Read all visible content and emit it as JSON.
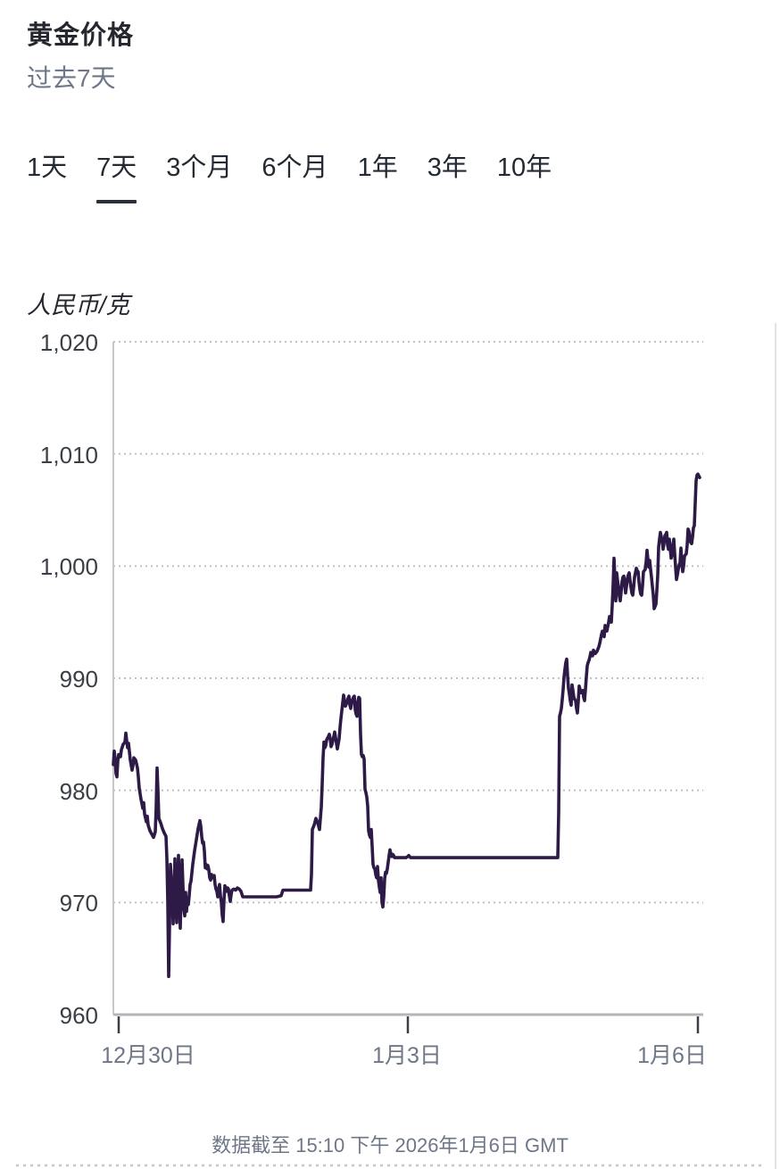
{
  "header": {
    "title": "黄金价格",
    "subtitle": "过去7天"
  },
  "tabs": {
    "items": [
      {
        "label": "1天",
        "selected": false
      },
      {
        "label": "7天",
        "selected": true
      },
      {
        "label": "3个月",
        "selected": false
      },
      {
        "label": "6个月",
        "selected": false
      },
      {
        "label": "1年",
        "selected": false
      },
      {
        "label": "3年",
        "selected": false
      },
      {
        "label": "10年",
        "selected": false
      }
    ]
  },
  "footer": {
    "data_as_of": "数据截至 15:10 下午 2026年1月6日 GMT"
  },
  "chart_data": {
    "type": "line",
    "title": "黄金价格",
    "subtitle": "过去7天",
    "ylabel": "人民币/克",
    "xlabel": "",
    "ylim": [
      960,
      1020
    ],
    "grid": "dotted-horizontal",
    "legend": "none",
    "line_color": "#2e1a47",
    "axis_color": "#b5b5b5",
    "grid_color": "#c0c0c0",
    "y_ticks": [
      {
        "label": "1,020",
        "value": 1020
      },
      {
        "label": "1,010",
        "value": 1010
      },
      {
        "label": "1,000",
        "value": 1000
      },
      {
        "label": "990",
        "value": 990
      },
      {
        "label": "980",
        "value": 980
      },
      {
        "label": "970",
        "value": 970
      },
      {
        "label": "960",
        "value": 960
      }
    ],
    "x_ticks": [
      {
        "label": "12月30日",
        "x": 133,
        "label_center_x": 166
      },
      {
        "label": "1月3日",
        "x": 457,
        "label_center_x": 456
      },
      {
        "label": "1月6日",
        "x": 782,
        "label_center_x": 753
      }
    ],
    "points": [
      [
        127,
        982.3
      ],
      [
        128,
        983.5
      ],
      [
        129,
        982.8
      ],
      [
        130,
        981.5
      ],
      [
        131,
        981.2
      ],
      [
        132,
        982.6
      ],
      [
        133,
        983.2
      ],
      [
        135,
        983.0
      ],
      [
        136,
        983.6
      ],
      [
        138,
        984.1
      ],
      [
        140,
        984.3
      ],
      [
        141,
        985.1
      ],
      [
        142,
        984.4
      ],
      [
        143,
        983.8
      ],
      [
        144,
        984.2
      ],
      [
        146,
        982.7
      ],
      [
        148,
        981.8
      ],
      [
        149,
        982.2
      ],
      [
        150,
        982.9
      ],
      [
        152,
        982.7
      ],
      [
        154,
        982.0
      ],
      [
        155,
        981.2
      ],
      [
        156,
        980.2
      ],
      [
        158,
        979.2
      ],
      [
        160,
        978.4
      ],
      [
        161,
        978.9
      ],
      [
        162,
        977.9
      ],
      [
        164,
        977.2
      ],
      [
        165,
        977.7
      ],
      [
        166,
        976.9
      ],
      [
        168,
        976.4
      ],
      [
        170,
        976.1
      ],
      [
        172,
        975.8
      ],
      [
        174,
        976.3
      ],
      [
        175,
        978.5
      ],
      [
        176,
        982.0
      ],
      [
        177,
        980.0
      ],
      [
        178,
        977.5
      ],
      [
        180,
        977.1
      ],
      [
        182,
        976.6
      ],
      [
        184,
        976.2
      ],
      [
        186,
        975.9
      ],
      [
        187,
        973.9
      ],
      [
        188,
        970.0
      ],
      [
        189,
        963.4
      ],
      [
        190,
        968.0
      ],
      [
        191,
        973.4
      ],
      [
        192,
        972.0
      ],
      [
        193,
        971.3
      ],
      [
        194,
        968.1
      ],
      [
        195,
        971.0
      ],
      [
        196,
        973.9
      ],
      [
        197,
        970.5
      ],
      [
        198,
        968.2
      ],
      [
        199,
        971.5
      ],
      [
        200,
        974.2
      ],
      [
        201,
        970.8
      ],
      [
        202,
        967.7
      ],
      [
        203,
        971.0
      ],
      [
        204,
        973.8
      ],
      [
        205,
        971.5
      ],
      [
        206,
        969.4
      ],
      [
        207,
        968.8
      ],
      [
        208,
        970.9
      ],
      [
        209,
        969.2
      ],
      [
        210,
        970.3
      ],
      [
        211,
        969.8
      ],
      [
        212,
        970.6
      ],
      [
        213,
        971.6
      ],
      [
        214,
        971.9
      ],
      [
        216,
        973.4
      ],
      [
        218,
        974.6
      ],
      [
        220,
        975.6
      ],
      [
        222,
        976.6
      ],
      [
        224,
        977.3
      ],
      [
        225,
        976.8
      ],
      [
        226,
        975.9
      ],
      [
        227,
        975.3
      ],
      [
        228,
        975.4
      ],
      [
        229,
        974.6
      ],
      [
        230,
        973.1
      ],
      [
        231,
        973.4
      ],
      [
        232,
        973.0
      ],
      [
        233,
        973.3
      ],
      [
        234,
        972.9
      ],
      [
        235,
        972.2
      ],
      [
        236,
        972.0
      ],
      [
        237,
        972.5
      ],
      [
        238,
        972.2
      ],
      [
        240,
        972.4
      ],
      [
        241,
        971.6
      ],
      [
        242,
        971.2
      ],
      [
        243,
        971.0
      ],
      [
        244,
        970.5
      ],
      [
        245,
        971.2
      ],
      [
        246,
        971.6
      ],
      [
        247,
        970.6
      ],
      [
        248,
        970.0
      ],
      [
        249,
        968.9
      ],
      [
        250,
        968.3
      ],
      [
        251,
        970.2
      ],
      [
        252,
        971.5
      ],
      [
        253,
        971.2
      ],
      [
        254,
        971.0
      ],
      [
        255,
        971.3
      ],
      [
        256,
        971.2
      ],
      [
        257,
        970.6
      ],
      [
        258,
        970.1
      ],
      [
        259,
        970.7
      ],
      [
        260,
        971.1
      ],
      [
        262,
        971.2
      ],
      [
        264,
        971.1
      ],
      [
        266,
        971.3
      ],
      [
        268,
        971.2
      ],
      [
        270,
        971.0
      ],
      [
        272,
        970.5
      ],
      [
        280,
        970.5
      ],
      [
        290,
        970.5
      ],
      [
        300,
        970.5
      ],
      [
        310,
        970.5
      ],
      [
        315,
        970.6
      ],
      [
        317,
        971.1
      ],
      [
        325,
        971.1
      ],
      [
        335,
        971.1
      ],
      [
        345,
        971.1
      ],
      [
        348,
        971.1
      ],
      [
        349,
        972.5
      ],
      [
        350,
        976.5
      ],
      [
        352,
        976.9
      ],
      [
        354,
        977.5
      ],
      [
        356,
        977.1
      ],
      [
        358,
        976.5
      ],
      [
        360,
        978.5
      ],
      [
        361,
        980.5
      ],
      [
        362,
        982.9
      ],
      [
        363,
        984.3
      ],
      [
        364,
        983.8
      ],
      [
        365,
        984.0
      ],
      [
        366,
        984.5
      ],
      [
        368,
        984.8
      ],
      [
        369,
        985.0
      ],
      [
        370,
        984.6
      ],
      [
        371,
        983.9
      ],
      [
        372,
        984.1
      ],
      [
        374,
        984.8
      ],
      [
        375,
        985.2
      ],
      [
        376,
        984.7
      ],
      [
        378,
        983.7
      ],
      [
        380,
        984.6
      ],
      [
        381,
        985.6
      ],
      [
        382,
        986.4
      ],
      [
        383,
        987.1
      ],
      [
        384,
        987.8
      ],
      [
        385,
        988.5
      ],
      [
        386,
        988.0
      ],
      [
        387,
        987.5
      ],
      [
        388,
        987.7
      ],
      [
        389,
        987.9
      ],
      [
        390,
        988.2
      ],
      [
        391,
        988.4
      ],
      [
        392,
        987.6
      ],
      [
        393,
        987.3
      ],
      [
        394,
        987.8
      ],
      [
        395,
        988.1
      ],
      [
        396,
        988.3
      ],
      [
        397,
        988.4
      ],
      [
        398,
        987.2
      ],
      [
        399,
        986.8
      ],
      [
        400,
        986.6
      ],
      [
        401,
        987.9
      ],
      [
        402,
        988.3
      ],
      [
        403,
        988.2
      ],
      [
        404,
        985.0
      ],
      [
        405,
        983.2
      ],
      [
        406,
        983.0
      ],
      [
        407,
        983.1
      ],
      [
        408,
        982.8
      ],
      [
        409,
        980.1
      ],
      [
        410,
        979.8
      ],
      [
        411,
        979.4
      ],
      [
        412,
        978.6
      ],
      [
        413,
        976.4
      ],
      [
        414,
        976.0
      ],
      [
        415,
        975.8
      ],
      [
        416,
        976.5
      ],
      [
        417,
        975.0
      ],
      [
        418,
        973.4
      ],
      [
        419,
        973.1
      ],
      [
        420,
        973.0
      ],
      [
        421,
        972.5
      ],
      [
        422,
        972.2
      ],
      [
        423,
        973.2
      ],
      [
        424,
        972.0
      ],
      [
        425,
        971.4
      ],
      [
        426,
        970.9
      ],
      [
        427,
        972.2
      ],
      [
        428,
        970.0
      ],
      [
        429,
        969.6
      ],
      [
        430,
        970.5
      ],
      [
        431,
        972.1
      ],
      [
        432,
        972.7
      ],
      [
        433,
        972.6
      ],
      [
        434,
        973.0
      ],
      [
        435,
        973.6
      ],
      [
        436,
        974.2
      ],
      [
        437,
        974.7
      ],
      [
        438,
        974.3
      ],
      [
        439,
        974.1
      ],
      [
        440,
        974.3
      ],
      [
        441,
        974.2
      ],
      [
        442,
        974.0
      ],
      [
        445,
        974.0
      ],
      [
        455,
        974.0
      ],
      [
        457,
        974.1
      ],
      [
        458,
        974.2
      ],
      [
        460,
        974.0
      ],
      [
        480,
        974.0
      ],
      [
        510,
        974.0
      ],
      [
        540,
        974.0
      ],
      [
        570,
        974.0
      ],
      [
        600,
        974.0
      ],
      [
        620,
        974.0
      ],
      [
        625,
        974.0
      ],
      [
        626,
        978.0
      ],
      [
        627,
        986.6
      ],
      [
        628,
        986.9
      ],
      [
        629,
        987.3
      ],
      [
        630,
        988.1
      ],
      [
        631,
        989.0
      ],
      [
        632,
        990.1
      ],
      [
        633,
        990.8
      ],
      [
        634,
        991.4
      ],
      [
        635,
        991.7
      ],
      [
        636,
        990.2
      ],
      [
        637,
        989.1
      ],
      [
        638,
        988.6
      ],
      [
        639,
        988.0
      ],
      [
        640,
        987.6
      ],
      [
        641,
        989.4
      ],
      [
        642,
        988.9
      ],
      [
        643,
        988.3
      ],
      [
        644,
        988.1
      ],
      [
        645,
        988.0
      ],
      [
        646,
        987.3
      ],
      [
        647,
        986.9
      ],
      [
        648,
        988.0
      ],
      [
        649,
        989.3
      ],
      [
        650,
        989.0
      ],
      [
        651,
        988.7
      ],
      [
        652,
        988.8
      ],
      [
        653,
        988.9
      ],
      [
        654,
        988.3
      ],
      [
        655,
        988.0
      ],
      [
        656,
        989.0
      ],
      [
        657,
        990.1
      ],
      [
        658,
        991.1
      ],
      [
        659,
        991.4
      ],
      [
        660,
        991.6
      ],
      [
        661,
        991.9
      ],
      [
        662,
        992.3
      ],
      [
        663,
        992.1
      ],
      [
        664,
        992.0
      ],
      [
        665,
        992.5
      ],
      [
        666,
        992.3
      ],
      [
        667,
        992.2
      ],
      [
        668,
        992.3
      ],
      [
        669,
        992.4
      ],
      [
        670,
        992.6
      ],
      [
        671,
        992.8
      ],
      [
        672,
        993.1
      ],
      [
        673,
        993.5
      ],
      [
        674,
        993.9
      ],
      [
        675,
        994.2
      ],
      [
        676,
        993.9
      ],
      [
        677,
        993.7
      ],
      [
        678,
        994.7
      ],
      [
        679,
        994.4
      ],
      [
        680,
        994.2
      ],
      [
        681,
        994.6
      ],
      [
        682,
        995.0
      ],
      [
        683,
        995.5
      ],
      [
        684,
        995.2
      ],
      [
        685,
        995.0
      ],
      [
        686,
        996.5
      ],
      [
        687,
        998.3
      ],
      [
        688,
        1000.7
      ],
      [
        689,
        999.0
      ],
      [
        690,
        996.9
      ],
      [
        691,
        999.4
      ],
      [
        692,
        998.7
      ],
      [
        693,
        998.1
      ],
      [
        694,
        997.3
      ],
      [
        695,
        996.9
      ],
      [
        696,
        997.7
      ],
      [
        697,
        998.6
      ],
      [
        698,
        999.0
      ],
      [
        699,
        999.1
      ],
      [
        700,
        998.3
      ],
      [
        701,
        997.6
      ],
      [
        702,
        998.2
      ],
      [
        703,
        998.9
      ],
      [
        704,
        999.2
      ],
      [
        705,
        999.4
      ],
      [
        706,
        998.7
      ],
      [
        707,
        998.1
      ],
      [
        708,
        997.6
      ],
      [
        709,
        997.4
      ],
      [
        710,
        998.1
      ],
      [
        711,
        999.0
      ],
      [
        712,
        999.4
      ],
      [
        713,
        999.8
      ],
      [
        714,
        999.6
      ],
      [
        715,
        999.5
      ],
      [
        716,
        998.6
      ],
      [
        717,
        997.9
      ],
      [
        718,
        997.5
      ],
      [
        719,
        997.4
      ],
      [
        720,
        998.3
      ],
      [
        721,
        999.5
      ],
      [
        722,
        999.6
      ],
      [
        723,
        999.7
      ],
      [
        724,
        1000.4
      ],
      [
        725,
        1001.4
      ],
      [
        726,
        1000.6
      ],
      [
        727,
        999.9
      ],
      [
        728,
        1000.5
      ],
      [
        729,
        999.7
      ],
      [
        730,
        999.0
      ],
      [
        731,
        998.2
      ],
      [
        732,
        997.4
      ],
      [
        733,
        996.2
      ],
      [
        734,
        996.4
      ],
      [
        735,
        996.6
      ],
      [
        736,
        997.8
      ],
      [
        737,
        999.2
      ],
      [
        738,
        1001.7
      ],
      [
        739,
        1002.4
      ],
      [
        740,
        1003.0
      ],
      [
        741,
        1002.6
      ],
      [
        742,
        1002.3
      ],
      [
        743,
        1001.5
      ],
      [
        744,
        1002.0
      ],
      [
        745,
        1002.7
      ],
      [
        746,
        1002.8
      ],
      [
        747,
        1003.0
      ],
      [
        748,
        1001.9
      ],
      [
        749,
        1001.5
      ],
      [
        750,
        1002.4
      ],
      [
        751,
        1001.6
      ],
      [
        752,
        1000.7
      ],
      [
        753,
        1001.0
      ],
      [
        754,
        1001.8
      ],
      [
        755,
        1002.4
      ],
      [
        756,
        1001.1
      ],
      [
        757,
        999.9
      ],
      [
        758,
        998.8
      ],
      [
        759,
        999.2
      ],
      [
        760,
        999.7
      ],
      [
        761,
        1000.1
      ],
      [
        762,
        1000.3
      ],
      [
        763,
        1001.6
      ],
      [
        764,
        1000.2
      ],
      [
        765,
        999.5
      ],
      [
        766,
        1000.0
      ],
      [
        767,
        1000.9
      ],
      [
        768,
        1001.0
      ],
      [
        769,
        1001.1
      ],
      [
        770,
        1001.9
      ],
      [
        771,
        1003.3
      ],
      [
        772,
        1003.1
      ],
      [
        773,
        1002.5
      ],
      [
        774,
        1002.1
      ],
      [
        775,
        1002.0
      ],
      [
        776,
        1002.6
      ],
      [
        777,
        1003.4
      ],
      [
        778,
        1003.6
      ],
      [
        779,
        1005.6
      ],
      [
        780,
        1007.6
      ],
      [
        781,
        1008.1
      ],
      [
        782,
        1008.2
      ],
      [
        784,
        1007.9
      ]
    ]
  }
}
